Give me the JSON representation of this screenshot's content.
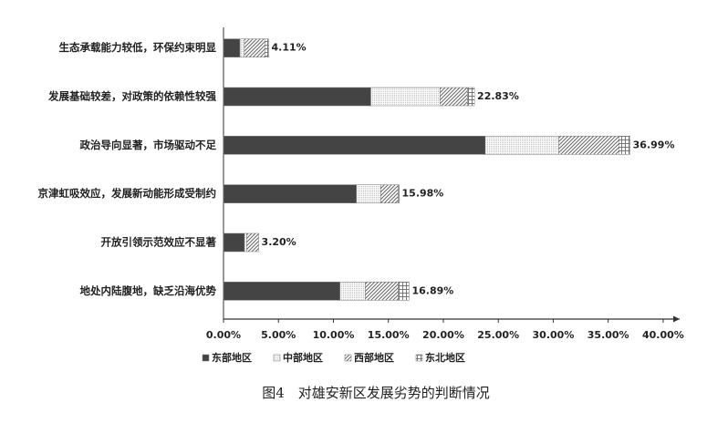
{
  "chart_data": {
    "type": "stacked_barh",
    "categories": [
      "生态承载能力较低，环保约束明显",
      "发展基础较差，对政策的依赖性较强",
      "政治导向显著，市场驱动不足",
      "京津虹吸效应，发展新动能形成受制约",
      "开放引领示范效应不显著",
      "地处内陆腹地，缺乏沿海优势"
    ],
    "series": [
      {
        "name": "东部地区",
        "color": "#555555",
        "values": [
          1.5,
          13.4,
          23.8,
          12.1,
          1.9,
          10.6
        ]
      },
      {
        "name": "中部地区",
        "color": "#b8b8b8",
        "values": [
          0.4,
          6.3,
          6.7,
          2.2,
          0.2,
          2.3
        ]
      },
      {
        "name": "西部地区",
        "color": "#666666",
        "values": [
          1.9,
          2.5,
          5.5,
          1.6,
          1.1,
          3.0
        ]
      },
      {
        "name": "东北地区",
        "color": "#777777",
        "values": [
          0.31,
          0.63,
          0.99,
          0.08,
          0,
          0.99
        ]
      }
    ],
    "totals": [
      4.11,
      22.83,
      36.99,
      15.98,
      3.2,
      16.89
    ],
    "total_labels": [
      "4.11%",
      "22.83%",
      "36.99%",
      "15.98%",
      "3.20%",
      "16.89%"
    ],
    "xlim": [
      0,
      41.5
    ],
    "xticks": [
      {
        "value": 0,
        "label": "0.00%"
      },
      {
        "value": 5,
        "label": "5.00%"
      },
      {
        "value": 10,
        "label": "10.00%"
      },
      {
        "value": 15,
        "label": "15.00%"
      },
      {
        "value": 20,
        "label": "20.00%"
      },
      {
        "value": 25,
        "label": "25.00%"
      },
      {
        "value": 30,
        "label": "30.00%"
      },
      {
        "value": 35,
        "label": "35.00%"
      },
      {
        "value": 40,
        "label": "40.00%"
      }
    ],
    "caption": "图4　对雄安新区发展劣势的判断情况"
  }
}
